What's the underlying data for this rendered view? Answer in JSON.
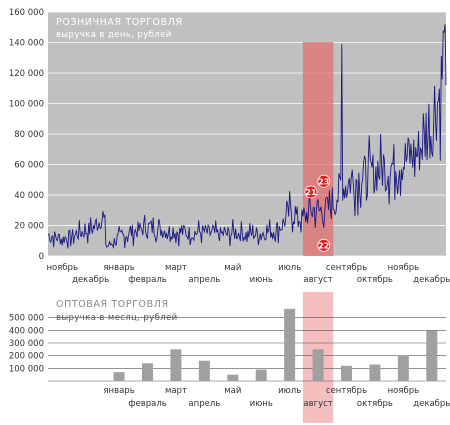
{
  "chart_data": [
    {
      "type": "line",
      "title": "РОЗНИЧНАЯ ТОРГОВЛЯ",
      "subtitle": "выручка в день, рублей",
      "ylim": [
        0,
        160000
      ],
      "yticks": [
        0,
        20000,
        40000,
        60000,
        80000,
        100000,
        120000,
        140000,
        160000
      ],
      "ytick_labels": [
        "0",
        "20 000",
        "40 000",
        "60 000",
        "80 000",
        "100 000",
        "120 000",
        "140 000",
        "160 000"
      ],
      "grid": true,
      "background": "#c0c0c0",
      "line_color": "#1a1a80",
      "highlight_color": "#e07070",
      "x_months": [
        "ноябрь",
        "декабрь",
        "январь",
        "февраль",
        "март",
        "апрель",
        "май",
        "июнь",
        "июль",
        "август",
        "сентябрь",
        "октябрь",
        "ноябрь",
        "декабрь"
      ],
      "highlight_month_index": 9,
      "series_anchors": [
        {
          "x": 0.0,
          "y": 14000
        },
        {
          "x": 0.5,
          "y": 11000
        },
        {
          "x": 1.0,
          "y": 14000
        },
        {
          "x": 1.6,
          "y": 18000
        },
        {
          "x": 1.95,
          "y": 27000
        },
        {
          "x": 2.05,
          "y": 6000
        },
        {
          "x": 2.5,
          "y": 12000
        },
        {
          "x": 3.0,
          "y": 16000
        },
        {
          "x": 3.5,
          "y": 19000
        },
        {
          "x": 4.0,
          "y": 17000
        },
        {
          "x": 4.5,
          "y": 16000
        },
        {
          "x": 5.0,
          "y": 15000
        },
        {
          "x": 5.5,
          "y": 16000
        },
        {
          "x": 6.0,
          "y": 14000
        },
        {
          "x": 6.5,
          "y": 15000
        },
        {
          "x": 7.0,
          "y": 14000
        },
        {
          "x": 7.5,
          "y": 15000
        },
        {
          "x": 8.0,
          "y": 17000
        },
        {
          "x": 8.3,
          "y": 22000
        },
        {
          "x": 8.5,
          "y": 29000
        },
        {
          "x": 8.8,
          "y": 25000
        },
        {
          "x": 9.0,
          "y": 24000
        },
        {
          "x": 9.3,
          "y": 31000
        },
        {
          "x": 9.6,
          "y": 29000
        },
        {
          "x": 10.0,
          "y": 32000
        },
        {
          "x": 10.25,
          "y": 44000
        },
        {
          "x": 10.5,
          "y": 47000
        },
        {
          "x": 11.0,
          "y": 52000
        },
        {
          "x": 11.5,
          "y": 55000
        },
        {
          "x": 12.0,
          "y": 58000
        },
        {
          "x": 12.5,
          "y": 63000
        },
        {
          "x": 13.0,
          "y": 68000
        },
        {
          "x": 13.5,
          "y": 84000
        },
        {
          "x": 13.8,
          "y": 110000
        },
        {
          "x": 14.0,
          "y": 140000
        }
      ],
      "series_spikes": [
        {
          "x": 2.0,
          "y": 27000
        },
        {
          "x": 10.35,
          "y": 139000
        },
        {
          "x": 13.96,
          "y": 152000
        }
      ],
      "annotations": [
        {
          "label": "21",
          "x": 9.25,
          "y": 42000
        },
        {
          "label": "23",
          "x": 9.7,
          "y": 49000
        },
        {
          "label": "22",
          "x": 9.7,
          "y": 7000
        }
      ]
    },
    {
      "type": "bar",
      "title": "ОПТОВАЯ ТОРГОВЛЯ",
      "subtitle": "выручка в месяц, рублей",
      "ylim": [
        0,
        600000
      ],
      "yticks": [
        0,
        100000,
        200000,
        300000,
        400000,
        500000
      ],
      "ytick_labels": [
        "",
        "100 000",
        "200 000",
        "300 000",
        "400 000",
        "500 000"
      ],
      "grid": true,
      "bar_color": "#a0a0a0",
      "categories": [
        "ноябрь",
        "декабрь",
        "январь",
        "февраль",
        "март",
        "апрель",
        "май",
        "июнь",
        "июль",
        "август",
        "сентябрь",
        "октябрь",
        "ноябрь",
        "декабрь"
      ],
      "category_labels_shown": [
        "",
        "",
        "январь",
        "февраль",
        "март",
        "апрель",
        "май",
        "июнь",
        "июль",
        "август",
        "сентябрь",
        "октябрь",
        "ноябрь",
        "декабрь"
      ],
      "values": [
        0,
        0,
        70000,
        140000,
        250000,
        160000,
        50000,
        90000,
        570000,
        250000,
        120000,
        130000,
        200000,
        400000
      ],
      "highlight_month_index": 9
    }
  ]
}
